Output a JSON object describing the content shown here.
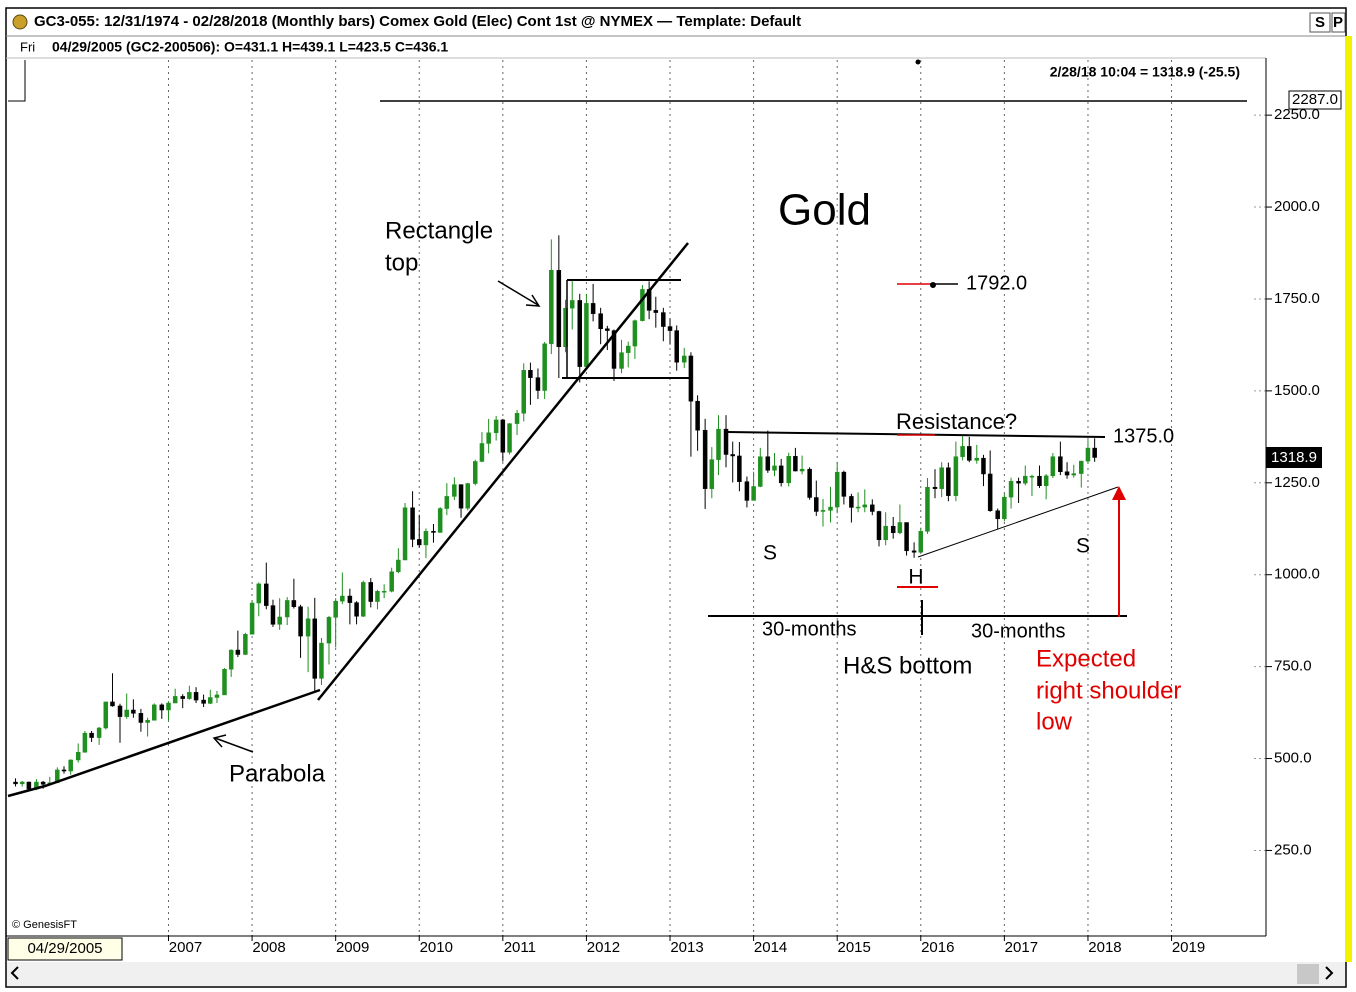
{
  "chart_data": {
    "type": "candlestick",
    "header": {
      "title": "GC3-055:  12/31/1974 - 02/28/2018  (Monthly bars)  Comex Gold (Elec) Cont 1st @ NYMEX  —  Template: Default",
      "day": "Fri",
      "cursor": "04/29/2005 (GC2-200506):  O=431.1  H=439.1  L=423.5  C=436.1",
      "last": "2/28/18 10:04 = 1318.9 (-25.5)",
      "buttons": [
        "S",
        "P"
      ]
    },
    "title": "Gold",
    "annotations": [
      "Rectangle",
      "top",
      "1792.0",
      "Resistance?",
      "1375.0",
      "S",
      "H",
      "S",
      "30-months",
      "30-months",
      "H&S bottom",
      "Expected",
      "right shoulder",
      "low",
      "Parabola"
    ],
    "price_labels": [
      "2287.0",
      "1318.9"
    ],
    "cursor_date": "04/29/2005",
    "credit": "© GenesisFT",
    "x": [
      2005.17,
      2005.25,
      2005.33,
      2005.42,
      2005.5,
      2005.58,
      2005.67,
      2005.75,
      2005.83,
      2005.92,
      2006.0,
      2006.08,
      2006.17,
      2006.25,
      2006.33,
      2006.42,
      2006.5,
      2006.58,
      2006.67,
      2006.75,
      2006.83,
      2006.92,
      2007.0,
      2007.08,
      2007.17,
      2007.25,
      2007.33,
      2007.42,
      2007.5,
      2007.58,
      2007.67,
      2007.75,
      2007.83,
      2007.92,
      2008.0,
      2008.08,
      2008.17,
      2008.25,
      2008.33,
      2008.42,
      2008.5,
      2008.58,
      2008.67,
      2008.75,
      2008.83,
      2008.92,
      2009.0,
      2009.08,
      2009.17,
      2009.25,
      2009.33,
      2009.42,
      2009.5,
      2009.58,
      2009.67,
      2009.75,
      2009.83,
      2009.92,
      2010.0,
      2010.08,
      2010.17,
      2010.25,
      2010.33,
      2010.42,
      2010.5,
      2010.58,
      2010.67,
      2010.75,
      2010.83,
      2010.92,
      2011.0,
      2011.08,
      2011.17,
      2011.25,
      2011.33,
      2011.42,
      2011.5,
      2011.58,
      2011.67,
      2011.75,
      2011.83,
      2011.92,
      2012.0,
      2012.08,
      2012.17,
      2012.25,
      2012.33,
      2012.42,
      2012.5,
      2012.58,
      2012.67,
      2012.75,
      2012.83,
      2012.92,
      2013.0,
      2013.08,
      2013.17,
      2013.25,
      2013.33,
      2013.42,
      2013.5,
      2013.58,
      2013.67,
      2013.75,
      2013.83,
      2013.92,
      2014.0,
      2014.08,
      2014.17,
      2014.25,
      2014.33,
      2014.42,
      2014.5,
      2014.58,
      2014.67,
      2014.75,
      2014.83,
      2014.92,
      2015.0,
      2015.08,
      2015.17,
      2015.25,
      2015.33,
      2015.42,
      2015.5,
      2015.58,
      2015.67,
      2015.75,
      2015.83,
      2015.92,
      2016.0,
      2016.08,
      2016.17,
      2016.25,
      2016.33,
      2016.42,
      2016.5,
      2016.58,
      2016.67,
      2016.75,
      2016.83,
      2016.92,
      2017.0,
      2017.08,
      2017.17,
      2017.25,
      2017.33,
      2017.42,
      2017.5,
      2017.58,
      2017.67,
      2017.75,
      2017.83,
      2017.92,
      2018.0,
      2018.08
    ],
    "open": [
      436,
      431.1,
      436.1,
      417,
      436,
      430,
      434,
      469,
      466,
      496,
      517,
      569,
      557,
      583,
      654,
      643,
      614,
      632,
      623,
      598,
      604,
      646,
      632,
      651,
      669,
      663,
      680,
      659,
      650,
      666,
      673,
      743,
      795,
      783,
      838,
      923,
      975,
      916,
      865,
      885,
      930,
      913,
      833,
      880,
      718,
      814,
      884,
      928,
      942,
      924,
      887,
      979,
      927,
      955,
      955,
      1008,
      1040,
      1182,
      1096,
      1081,
      1118,
      1115,
      1180,
      1213,
      1245,
      1181,
      1248,
      1308,
      1357,
      1386,
      1421,
      1333,
      1411,
      1439,
      1556,
      1536,
      1501,
      1628,
      1828,
      1620,
      1725,
      1746,
      1566,
      1738,
      1710,
      1669,
      1664,
      1561,
      1604,
      1622,
      1691,
      1776,
      1719,
      1713,
      1675,
      1664,
      1578,
      1595,
      1472,
      1393,
      1234,
      1313,
      1396,
      1327,
      1323,
      1253,
      1202,
      1240,
      1321,
      1284,
      1296,
      1250,
      1322,
      1282,
      1287,
      1210,
      1172,
      1175,
      1184,
      1279,
      1213,
      1183,
      1184,
      1190,
      1172,
      1095,
      1132,
      1114,
      1142,
      1065,
      1061,
      1118,
      1238,
      1234,
      1291,
      1215,
      1321,
      1349,
      1311,
      1317,
      1274,
      1174,
      1152,
      1211,
      1254,
      1249,
      1268,
      1268,
      1242,
      1269,
      1321,
      1280,
      1271,
      1275,
      1309,
      1344.4
    ],
    "high": [
      446,
      439.1,
      437,
      444,
      439,
      450,
      476,
      479,
      498,
      541,
      575,
      575,
      586,
      654,
      732,
      649,
      677,
      661,
      635,
      611,
      650,
      650,
      656,
      690,
      675,
      698,
      694,
      674,
      687,
      684,
      746,
      797,
      848,
      842,
      929,
      979,
      1033,
      932,
      936,
      939,
      989,
      918,
      913,
      937,
      828,
      888,
      936,
      1006,
      962,
      928,
      984,
      991,
      959,
      974,
      1019,
      1072,
      1195,
      1227,
      1163,
      1126,
      1138,
      1184,
      1249,
      1265,
      1246,
      1250,
      1313,
      1388,
      1424,
      1432,
      1424,
      1412,
      1448,
      1575,
      1577,
      1561,
      1633,
      1912,
      1923,
      1748,
      1804,
      1764,
      1764,
      1791,
      1726,
      1677,
      1667,
      1639,
      1634,
      1694,
      1788,
      1798,
      1756,
      1726,
      1697,
      1678,
      1617,
      1605,
      1488,
      1424,
      1347,
      1434,
      1434,
      1362,
      1361,
      1267,
      1280,
      1345,
      1392,
      1331,
      1315,
      1332,
      1345,
      1324,
      1292,
      1256,
      1206,
      1239,
      1307,
      1283,
      1220,
      1224,
      1232,
      1205,
      1174,
      1170,
      1157,
      1191,
      1142,
      1088,
      1128,
      1263,
      1287,
      1306,
      1305,
      1362,
      1377,
      1375,
      1353,
      1326,
      1338,
      1180,
      1221,
      1264,
      1264,
      1297,
      1272,
      1297,
      1274,
      1331,
      1362,
      1306,
      1299,
      1310,
      1366,
      1371
    ],
    "low": [
      424,
      423.5,
      414,
      414,
      418,
      428,
      433,
      459,
      456,
      489,
      516,
      545,
      537,
      579,
      641,
      543,
      608,
      611,
      573,
      560,
      604,
      608,
      603,
      651,
      637,
      660,
      651,
      640,
      648,
      651,
      673,
      722,
      776,
      782,
      838,
      887,
      906,
      858,
      850,
      863,
      908,
      774,
      735,
      681,
      700,
      756,
      802,
      920,
      865,
      865,
      885,
      911,
      906,
      936,
      952,
      1004,
      1040,
      1075,
      1074,
      1045,
      1087,
      1114,
      1162,
      1203,
      1155,
      1175,
      1243,
      1306,
      1330,
      1365,
      1308,
      1327,
      1380,
      1417,
      1462,
      1478,
      1478,
      1600,
      1535,
      1605,
      1667,
      1523,
      1562,
      1689,
      1627,
      1611,
      1527,
      1548,
      1564,
      1587,
      1689,
      1695,
      1672,
      1635,
      1626,
      1555,
      1562,
      1321,
      1337,
      1179,
      1208,
      1271,
      1292,
      1251,
      1227,
      1183,
      1202,
      1238,
      1277,
      1268,
      1240,
      1240,
      1281,
      1273,
      1204,
      1160,
      1131,
      1142,
      1167,
      1191,
      1142,
      1170,
      1170,
      1162,
      1077,
      1080,
      1098,
      1110,
      1052,
      1046,
      1060,
      1111,
      1208,
      1211,
      1200,
      1200,
      1311,
      1306,
      1302,
      1241,
      1171,
      1123,
      1145,
      1180,
      1195,
      1243,
      1214,
      1236,
      1205,
      1263,
      1271,
      1261,
      1264,
      1237,
      1302,
      1307
    ],
    "close": [
      431.1,
      436.1,
      417,
      436,
      430,
      434,
      469,
      466,
      496,
      517,
      569,
      557,
      583,
      654,
      643,
      614,
      632,
      623,
      598,
      604,
      646,
      632,
      651,
      669,
      663,
      680,
      659,
      650,
      666,
      673,
      743,
      795,
      783,
      838,
      923,
      975,
      916,
      865,
      885,
      930,
      913,
      833,
      880,
      718,
      814,
      884,
      928,
      942,
      924,
      887,
      979,
      927,
      955,
      955,
      1008,
      1040,
      1182,
      1096,
      1081,
      1118,
      1115,
      1180,
      1213,
      1245,
      1181,
      1248,
      1308,
      1357,
      1386,
      1421,
      1333,
      1411,
      1439,
      1556,
      1536,
      1501,
      1628,
      1828,
      1620,
      1725,
      1746,
      1566,
      1738,
      1710,
      1669,
      1664,
      1561,
      1604,
      1622,
      1691,
      1776,
      1719,
      1713,
      1675,
      1664,
      1578,
      1595,
      1472,
      1393,
      1234,
      1313,
      1396,
      1327,
      1323,
      1253,
      1202,
      1240,
      1321,
      1284,
      1296,
      1250,
      1322,
      1282,
      1287,
      1210,
      1172,
      1175,
      1184,
      1279,
      1213,
      1183,
      1184,
      1190,
      1172,
      1095,
      1132,
      1114,
      1142,
      1065,
      1061,
      1118,
      1238,
      1234,
      1291,
      1215,
      1321,
      1349,
      1311,
      1317,
      1274,
      1174,
      1152,
      1211,
      1254,
      1249,
      1268,
      1268,
      1242,
      1269,
      1321,
      1280,
      1271,
      1275,
      1309,
      1344.4,
      1318.9
    ],
    "up_color": "#1f8f1f",
    "down_color": "#000000",
    "xlim": [
      2005.08,
      2020.13
    ],
    "xticks": [
      2007,
      2008,
      2009,
      2010,
      2011,
      2012,
      2013,
      2014,
      2015,
      2016,
      2017,
      2018,
      2019
    ],
    "ylim": [
      20,
      2400
    ],
    "yticks": [
      {
        "value": 250,
        "label": "250.0"
      },
      {
        "value": 500,
        "label": "500.0"
      },
      {
        "value": 750,
        "label": "750.0"
      },
      {
        "value": 1000,
        "label": "1000.0"
      },
      {
        "value": 1250,
        "label": "1250.0"
      },
      {
        "value": 1500,
        "label": "1500.0"
      },
      {
        "value": 1750,
        "label": "1750.0"
      },
      {
        "value": 2000,
        "label": "2000.0"
      },
      {
        "value": 2250,
        "label": "2250.0"
      }
    ],
    "grid": true
  }
}
